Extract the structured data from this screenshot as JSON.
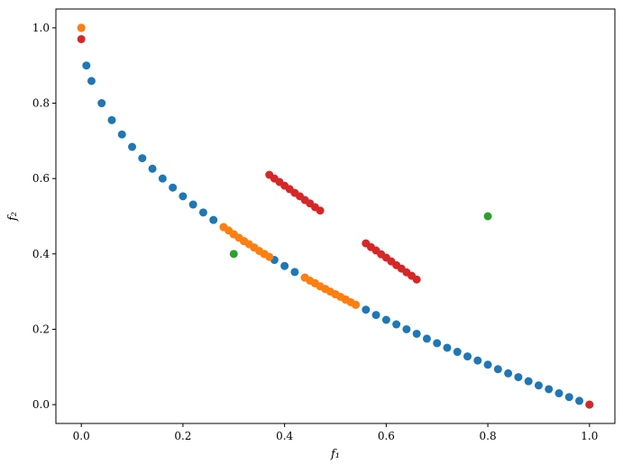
{
  "chart_data": {
    "type": "scatter",
    "xlabel": "f₁",
    "ylabel": "f₂",
    "xlim": [
      -0.05,
      1.05
    ],
    "ylim": [
      -0.05,
      1.05
    ],
    "xticks": [
      {
        "value": 0,
        "label": "0.0"
      },
      {
        "value": 0.2,
        "label": "0.2"
      },
      {
        "value": 0.4,
        "label": "0.4"
      },
      {
        "value": 0.6,
        "label": "0.6"
      },
      {
        "value": 0.8,
        "label": "0.8"
      },
      {
        "value": 1,
        "label": "1.0"
      }
    ],
    "yticks": [
      {
        "value": 0,
        "label": "0.0"
      },
      {
        "value": 0.2,
        "label": "0.2"
      },
      {
        "value": 0.4,
        "label": "0.4"
      },
      {
        "value": 0.6,
        "label": "0.6"
      },
      {
        "value": 0.8,
        "label": "0.8"
      },
      {
        "value": 1,
        "label": "1.0"
      }
    ],
    "series": [
      {
        "color": "#1f77b4",
        "x": [
          0,
          0.01,
          0.02,
          0.04,
          0.06,
          0.08,
          0.1,
          0.12,
          0.14,
          0.16,
          0.18,
          0.2,
          0.22,
          0.24,
          0.26,
          0.28,
          0.3,
          0.32,
          0.34,
          0.36,
          0.38,
          0.4,
          0.42,
          0.44,
          0.46,
          0.48,
          0.5,
          0.52,
          0.54,
          0.56,
          0.58,
          0.6,
          0.62,
          0.64,
          0.66,
          0.68,
          0.7,
          0.72,
          0.74,
          0.76,
          0.78,
          0.8,
          0.82,
          0.84,
          0.86,
          0.88,
          0.9,
          0.92,
          0.94,
          0.96,
          0.98,
          1.0
        ],
        "values": [
          1,
          0.9,
          0.859,
          0.8,
          0.755,
          0.717,
          0.684,
          0.654,
          0.626,
          0.6,
          0.576,
          0.553,
          0.531,
          0.51,
          0.49,
          0.471,
          0.452,
          0.434,
          0.417,
          0.4,
          0.384,
          0.368,
          0.352,
          0.337,
          0.322,
          0.307,
          0.293,
          0.279,
          0.265,
          0.252,
          0.238,
          0.225,
          0.213,
          0.2,
          0.188,
          0.175,
          0.163,
          0.151,
          0.14,
          0.128,
          0.117,
          0.106,
          0.094,
          0.083,
          0.073,
          0.062,
          0.051,
          0.041,
          0.03,
          0.02,
          0.01,
          0
        ]
      },
      {
        "color": "#ff7f0e",
        "x": [
          0,
          0.28,
          0.29,
          0.3,
          0.31,
          0.32,
          0.33,
          0.34,
          0.35,
          0.36,
          0.37,
          0.44,
          0.45,
          0.46,
          0.47,
          0.48,
          0.49,
          0.5,
          0.51,
          0.52,
          0.53,
          0.54
        ],
        "values": [
          1,
          0.471,
          0.462,
          0.452,
          0.443,
          0.434,
          0.426,
          0.417,
          0.408,
          0.4,
          0.392,
          0.337,
          0.329,
          0.322,
          0.314,
          0.307,
          0.3,
          0.293,
          0.286,
          0.279,
          0.272,
          0.265
        ]
      },
      {
        "color": "#2ca02c",
        "x": [
          0.3,
          0.8
        ],
        "values": [
          0.4,
          0.5
        ]
      },
      {
        "color": "#d62728",
        "x": [
          0,
          0.37,
          0.38,
          0.39,
          0.4,
          0.41,
          0.42,
          0.43,
          0.44,
          0.45,
          0.46,
          0.47,
          0.56,
          0.57,
          0.58,
          0.59,
          0.6,
          0.61,
          0.62,
          0.63,
          0.64,
          0.65,
          0.66,
          1
        ],
        "values": [
          0.97,
          0.61,
          0.6,
          0.591,
          0.581,
          0.572,
          0.562,
          0.553,
          0.543,
          0.534,
          0.524,
          0.515,
          0.428,
          0.418,
          0.409,
          0.399,
          0.39,
          0.38,
          0.37,
          0.361,
          0.351,
          0.342,
          0.332,
          0
        ]
      }
    ]
  }
}
